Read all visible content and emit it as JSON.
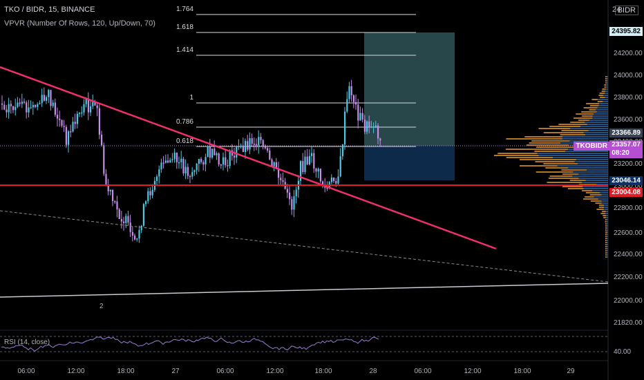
{
  "header": {
    "symbol": "TKO / BIDR, 15, BINANCE",
    "indicator": "VPVR (Number Of Rows, 120, Up/Down, 70)",
    "currency": "BIDR"
  },
  "rsi": {
    "label": "RSI (14, close)",
    "value": "40.00"
  },
  "price_axis": {
    "ticks": [
      "24200.00",
      "24000.00",
      "23800.00",
      "23600.00",
      "23400.00",
      "23200.00",
      "23000.00",
      "22800.00",
      "22600.00",
      "22400.00",
      "22200.00",
      "22000.00",
      "21820.00"
    ],
    "top_label": "24"
  },
  "badges": {
    "top": "24395.82",
    "fib_price": "23366.89",
    "symbol_tag": "TKOBIDR",
    "last_price": "23357.07",
    "countdown": "08:20",
    "support_1": "23046.14",
    "support_2": "23004.08"
  },
  "fib_levels": [
    "1.764",
    "1.618",
    "1.414",
    "1",
    "0.786",
    "0.618"
  ],
  "time_axis": [
    "06:00",
    "12:00",
    "18:00",
    "27",
    "06:00",
    "12:00",
    "18:00",
    "28",
    "06:00",
    "12:00",
    "18:00",
    "29"
  ],
  "misc": {
    "marker": "2"
  },
  "colors": {
    "up": "#4dc9e6",
    "down": "#c58ee8",
    "trendline": "#f0306a",
    "support": "#e01b24",
    "tp_zone": "#2e5358",
    "sl_zone": "#0d2a4a",
    "vol_up": "#f0a030",
    "vol_down": "#2f6fb0"
  }
}
